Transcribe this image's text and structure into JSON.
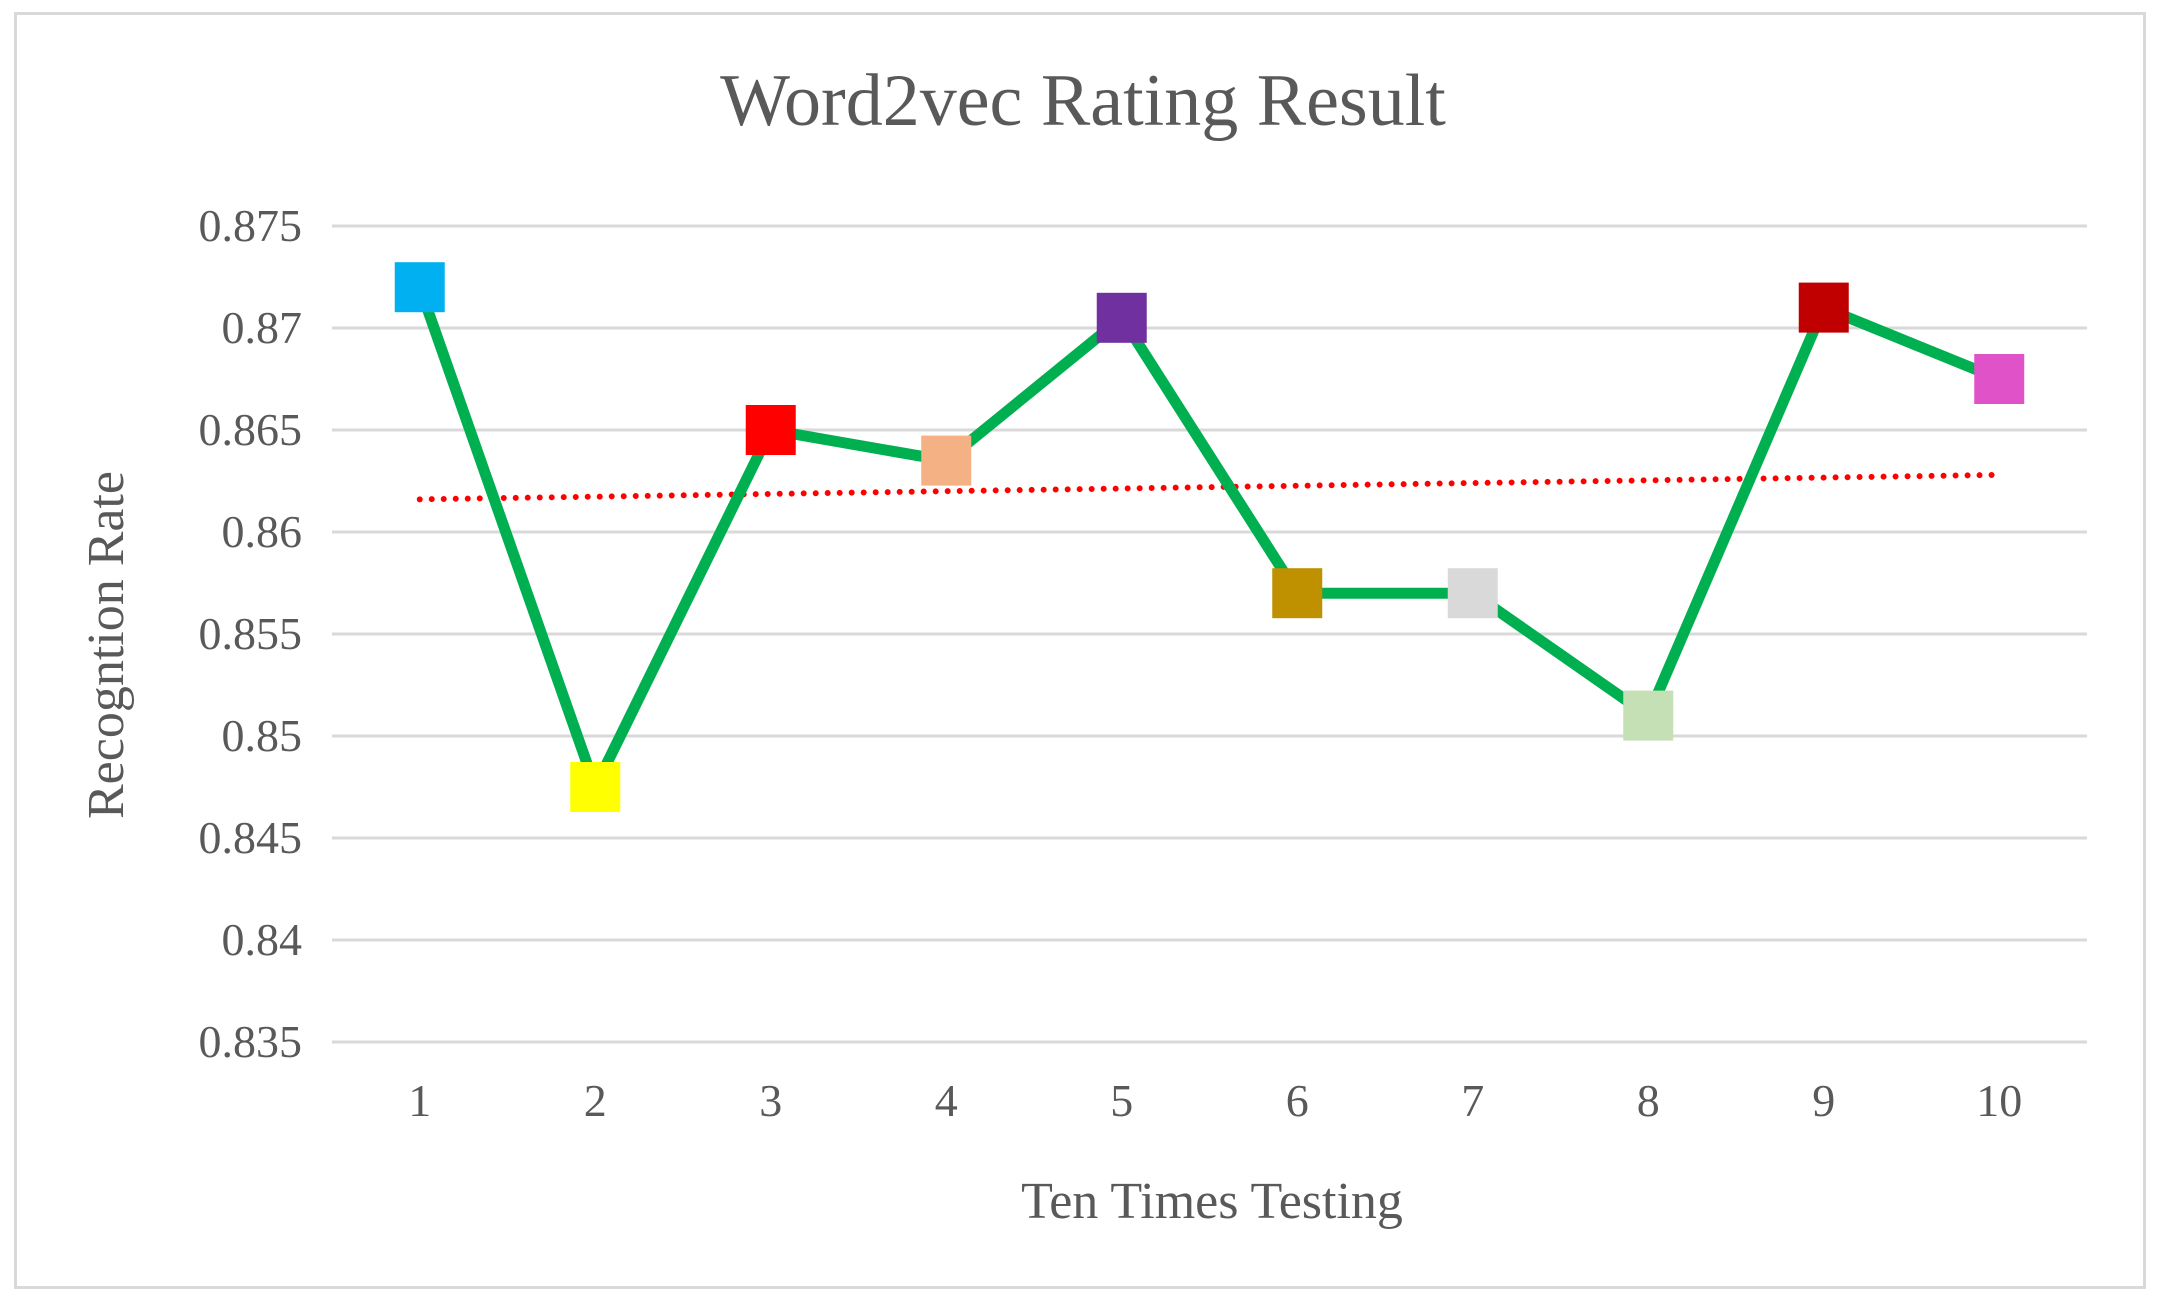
{
  "chart_data": {
    "type": "line",
    "title": "Word2vec Rating Result",
    "xlabel": "Ten Times Testing",
    "ylabel": "Recogntion Rate",
    "categories": [
      "1",
      "2",
      "3",
      "4",
      "5",
      "6",
      "7",
      "8",
      "9",
      "10"
    ],
    "series": [
      {
        "values": [
          0.872,
          0.8475,
          0.865,
          0.8635,
          0.8705,
          0.857,
          0.857,
          0.851,
          0.871,
          0.8675
        ],
        "line_color": "#00b050",
        "marker": "square",
        "marker_colors": [
          "#00b0f0",
          "#ffff00",
          "#ff0000",
          "#f4b183",
          "#7030a0",
          "#bf9000",
          "#d9d9d9",
          "#c5e0b4",
          "#c00000",
          "#e052c8"
        ]
      }
    ],
    "trendline": {
      "type": "linear",
      "style": "dotted",
      "color": "#ff0000",
      "start": 0.8616,
      "end": 0.8628
    },
    "y_ticks": [
      "0.835",
      "0.84",
      "0.845",
      "0.85",
      "0.855",
      "0.86",
      "0.865",
      "0.87",
      "0.875"
    ],
    "ylim": [
      0.835,
      0.875
    ],
    "grid": true,
    "legend": "none"
  }
}
